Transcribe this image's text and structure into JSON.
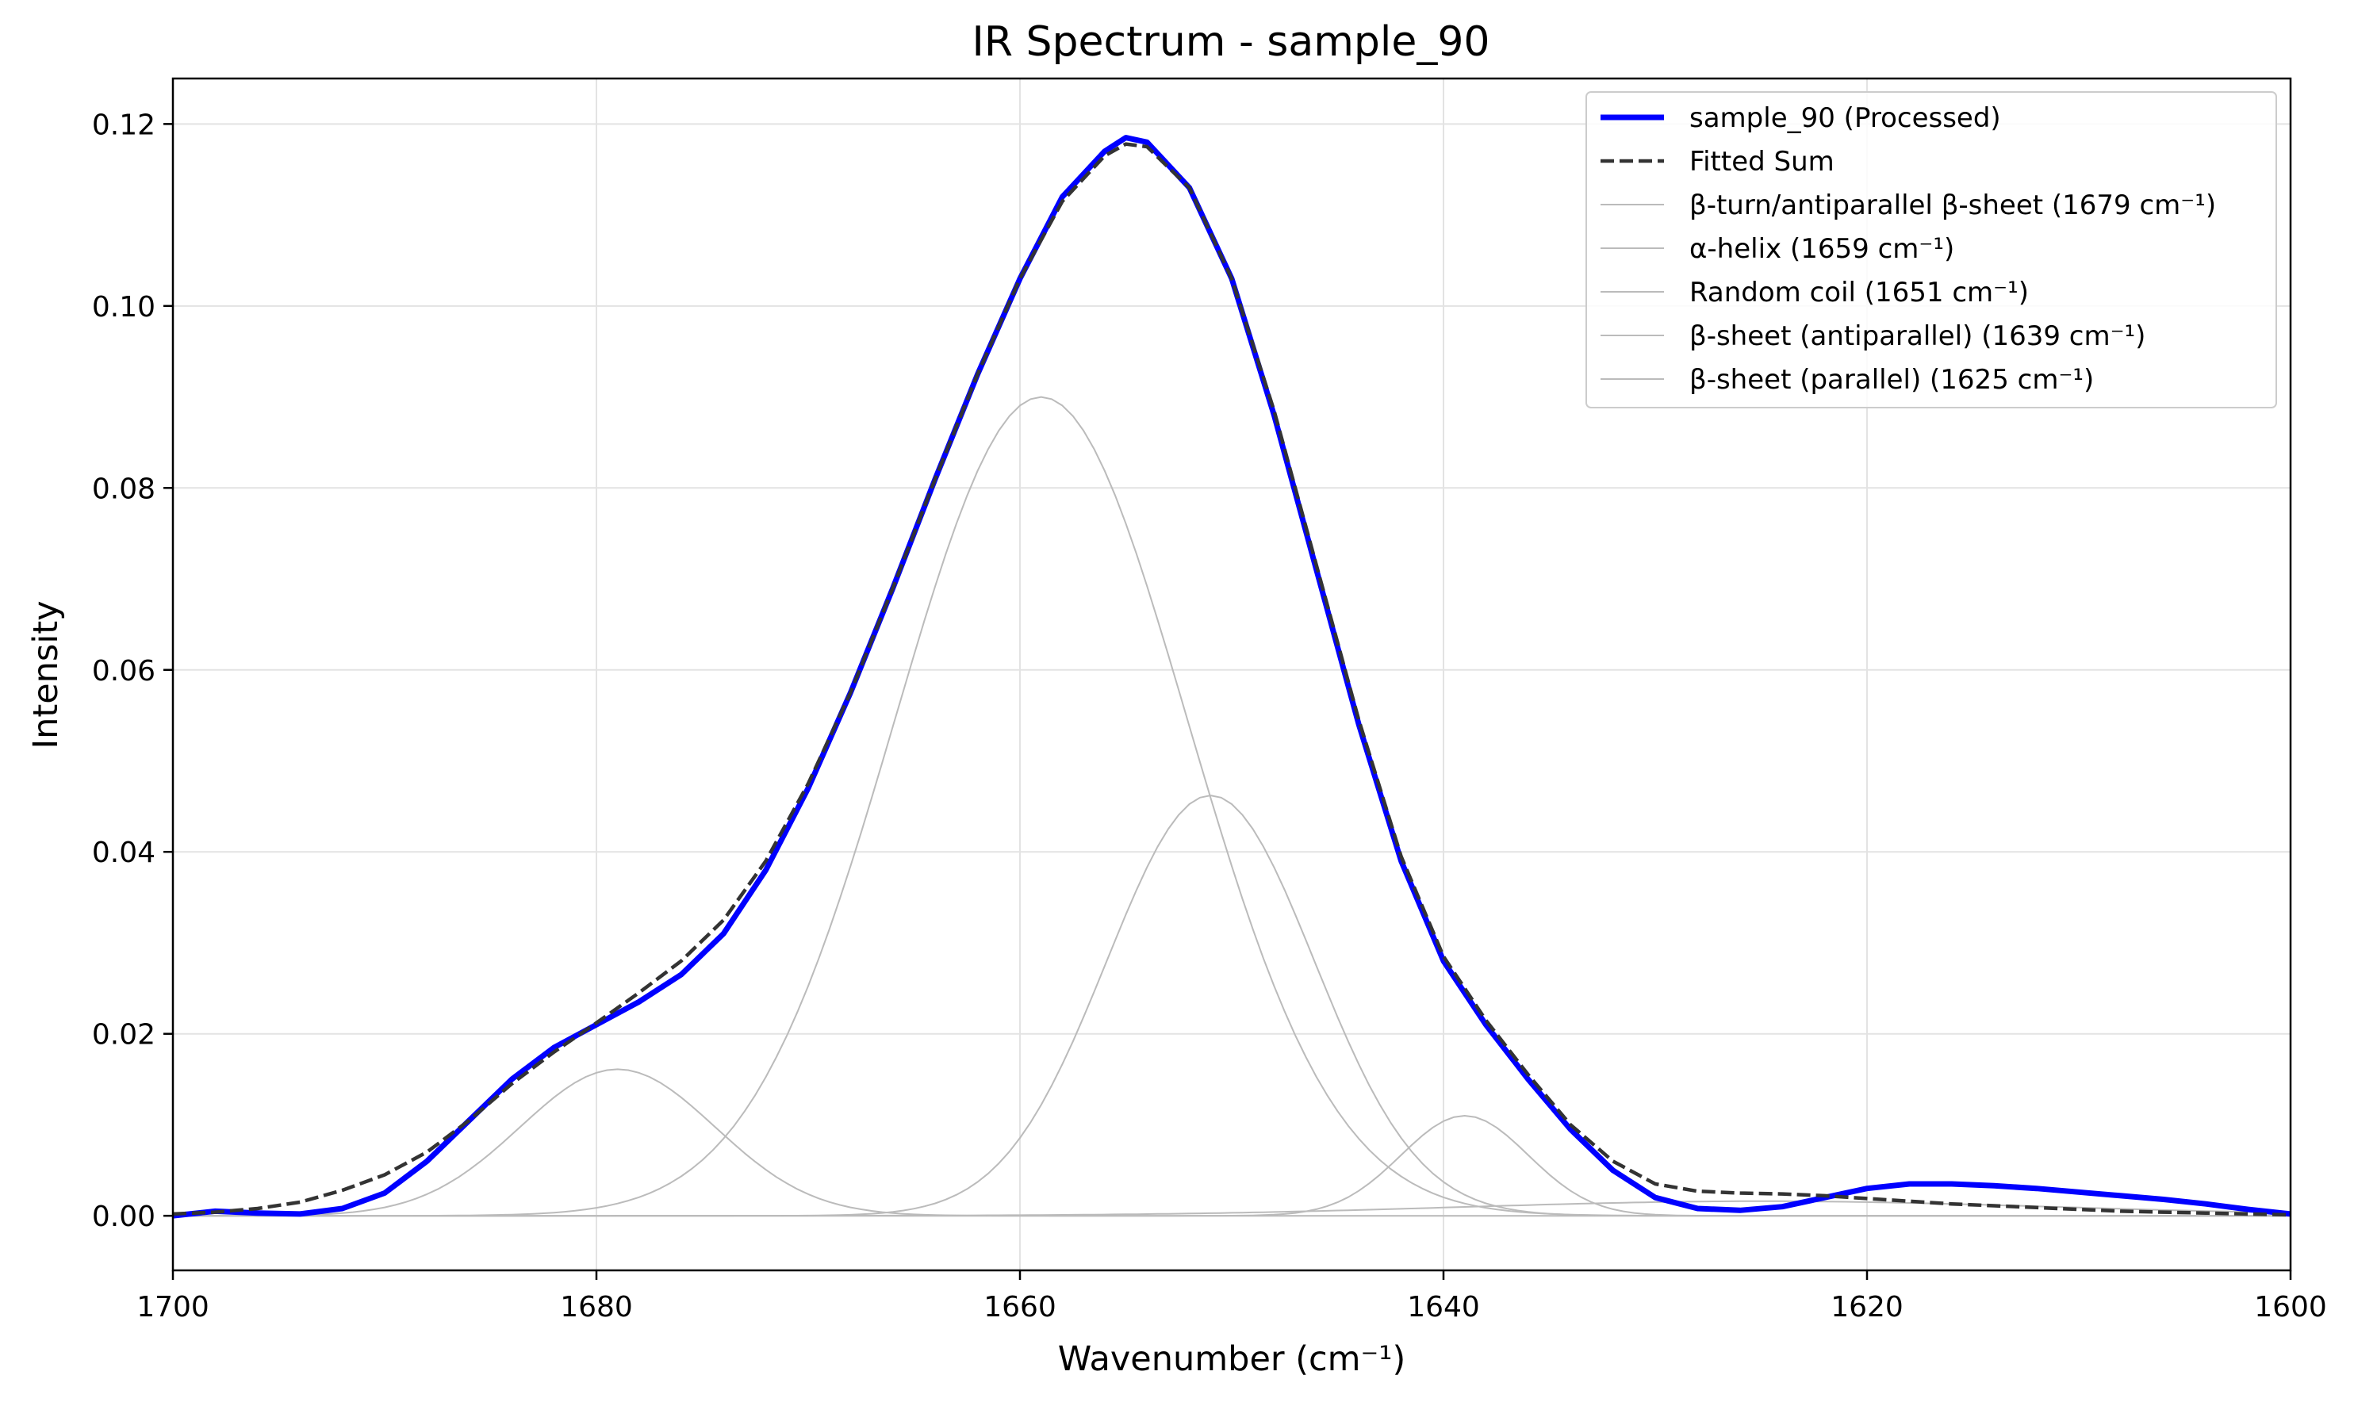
{
  "chart_data": {
    "type": "line",
    "title": "IR Spectrum - sample_90",
    "xlabel": "Wavenumber (cm⁻¹)",
    "ylabel": "Intensity",
    "xlim": [
      1700,
      1600
    ],
    "ylim": [
      -0.006,
      0.125
    ],
    "x_reversed": true,
    "grid": true,
    "legend_position": "top-right",
    "x_ticks": [
      1700,
      1680,
      1660,
      1640,
      1620,
      1600
    ],
    "y_ticks": [
      0.0,
      0.02,
      0.04,
      0.06,
      0.08,
      0.1,
      0.12
    ],
    "x_tick_labels": [
      "1700",
      "1680",
      "1660",
      "1640",
      "1620",
      "1600"
    ],
    "y_tick_labels": [
      "0.00",
      "0.02",
      "0.04",
      "0.06",
      "0.08",
      "0.10",
      "0.12"
    ],
    "series": [
      {
        "name": "sample_90 (Processed)",
        "color": "#0000ff",
        "style": "solid-thick",
        "x": [
          1700,
          1698,
          1696,
          1694,
          1692,
          1690,
          1688,
          1686,
          1684,
          1682,
          1680,
          1678,
          1676,
          1674,
          1672,
          1670,
          1668,
          1666,
          1664,
          1662,
          1660,
          1658,
          1656,
          1655,
          1654,
          1652,
          1650,
          1648,
          1646,
          1644,
          1642,
          1640,
          1638,
          1636,
          1634,
          1632,
          1630,
          1628,
          1626,
          1624,
          1622,
          1620,
          1618,
          1616,
          1614,
          1612,
          1610,
          1608,
          1606,
          1604,
          1602,
          1600
        ],
        "y": [
          0.0,
          0.0005,
          0.0003,
          0.0002,
          0.0008,
          0.0025,
          0.006,
          0.0105,
          0.015,
          0.0185,
          0.021,
          0.0235,
          0.0265,
          0.031,
          0.038,
          0.047,
          0.0575,
          0.069,
          0.081,
          0.0925,
          0.103,
          0.112,
          0.117,
          0.1185,
          0.118,
          0.113,
          0.103,
          0.088,
          0.071,
          0.054,
          0.039,
          0.028,
          0.021,
          0.015,
          0.0095,
          0.005,
          0.002,
          0.0008,
          0.0006,
          0.001,
          0.002,
          0.003,
          0.0035,
          0.0035,
          0.0033,
          0.003,
          0.0026,
          0.0022,
          0.0018,
          0.0013,
          0.0007,
          0.0002
        ]
      },
      {
        "name": "Fitted Sum",
        "color": "#333333",
        "style": "dashed",
        "x": [
          1700,
          1698,
          1696,
          1694,
          1692,
          1690,
          1688,
          1686,
          1684,
          1682,
          1680,
          1678,
          1676,
          1674,
          1672,
          1670,
          1668,
          1666,
          1664,
          1662,
          1660,
          1658,
          1656,
          1655,
          1654,
          1652,
          1650,
          1648,
          1646,
          1644,
          1642,
          1640,
          1638,
          1636,
          1634,
          1632,
          1630,
          1628,
          1626,
          1624,
          1622,
          1620,
          1618,
          1616,
          1614,
          1612,
          1610,
          1608,
          1606,
          1604,
          1602,
          1600
        ],
        "y": [
          0.0002,
          0.0004,
          0.0008,
          0.0015,
          0.0028,
          0.0045,
          0.007,
          0.0105,
          0.0145,
          0.018,
          0.0212,
          0.0245,
          0.028,
          0.0325,
          0.039,
          0.0475,
          0.0575,
          0.069,
          0.081,
          0.0925,
          0.103,
          0.1115,
          0.1165,
          0.1178,
          0.1175,
          0.113,
          0.103,
          0.0885,
          0.0715,
          0.0545,
          0.0395,
          0.0285,
          0.0215,
          0.0155,
          0.01,
          0.006,
          0.0035,
          0.0027,
          0.0025,
          0.0024,
          0.0022,
          0.0019,
          0.0016,
          0.0013,
          0.0011,
          0.0009,
          0.0007,
          0.0005,
          0.0004,
          0.0003,
          0.0002,
          0.0001
        ]
      },
      {
        "name": "β-turn/antiparallel β-sheet (1679 cm⁻¹)",
        "color": "#bbbbbb",
        "style": "solid-thin",
        "center": 1679,
        "amplitude": 0.0161,
        "sigma": 4.6
      },
      {
        "name": "α-helix (1659 cm⁻¹)",
        "color": "#bbbbbb",
        "style": "solid-thin",
        "center": 1659,
        "amplitude": 0.09,
        "sigma": 6.9
      },
      {
        "name": "Random coil (1651 cm⁻¹)",
        "color": "#bbbbbb",
        "style": "solid-thin",
        "center": 1651,
        "amplitude": 0.0462,
        "sigma": 4.9
      },
      {
        "name": "β-sheet (antiparallel) (1639 cm⁻¹)",
        "color": "#bbbbbb",
        "style": "solid-thin",
        "center": 1639,
        "amplitude": 0.011,
        "sigma": 3.0
      },
      {
        "name": "β-sheet (parallel) (1625 cm⁻¹)",
        "color": "#bbbbbb",
        "style": "solid-thin",
        "center": 1625,
        "amplitude": 0.0016,
        "sigma": 14
      }
    ]
  }
}
